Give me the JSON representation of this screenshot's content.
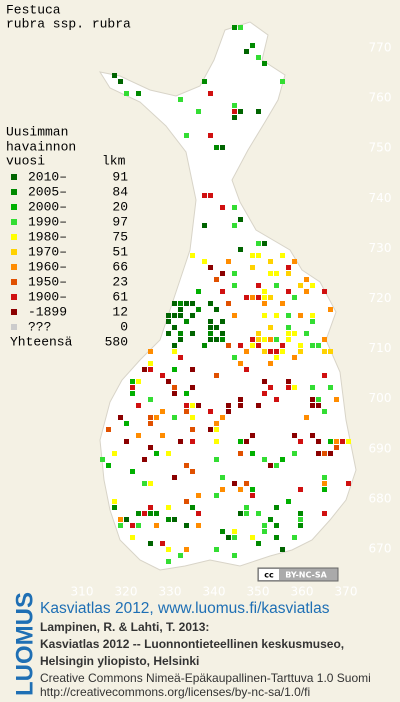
{
  "header": {
    "title": "Festuca",
    "subtitle": "rubra ssp. rubra"
  },
  "legend": {
    "heading": [
      "Uusimman",
      "havainnon",
      "vuosi"
    ],
    "count_heading": "lkm",
    "rows": [
      {
        "label": "2010–",
        "count": 91,
        "color": "#006400"
      },
      {
        "label": "2005–",
        "count": 84,
        "color": "#008a00"
      },
      {
        "label": "2000–",
        "count": 20,
        "color": "#00b000"
      },
      {
        "label": "1990–",
        "count": 97,
        "color": "#33dd33"
      },
      {
        "label": "1980–",
        "count": 75,
        "color": "#ffff00"
      },
      {
        "label": "1970–",
        "count": 51,
        "color": "#ffd200"
      },
      {
        "label": "1960–",
        "count": 66,
        "color": "#ff8c00"
      },
      {
        "label": "1950–",
        "count": 23,
        "color": "#e05000"
      },
      {
        "label": "1900–",
        "count": 61,
        "color": "#d01010"
      },
      {
        "label": "-1899",
        "count": 12,
        "color": "#8b0000"
      },
      {
        "label": "???",
        "count": 0,
        "color": "#cccccc"
      }
    ],
    "total": {
      "label": "Yhteensä",
      "count": 580
    }
  },
  "grid": {
    "northings": [
      770,
      760,
      750,
      740,
      730,
      720,
      710,
      700,
      690,
      680,
      670
    ],
    "eastings": [
      310,
      320,
      330,
      340,
      350,
      360,
      370
    ]
  },
  "license_badge": {
    "cc": "cc",
    "text": "BY-NC-SA"
  },
  "footer": {
    "logo": "LUOMUS",
    "link": "Kasviatlas 2012, www.luomus.fi/kasviatlas",
    "citation": [
      "Lampinen, R. & Lahti, T. 2013:",
      "Kasviatlas 2012 -- Luonnontieteellinen keskusmuseo,",
      "Helsingin yliopisto, Helsinki"
    ],
    "license": [
      "Creative Commons Nimeä-Epäkaupallinen-Tarttuva 1.0 Suomi",
      "http://creativecommons.org/licenses/by-nc-sa/1.0/fi"
    ]
  }
}
